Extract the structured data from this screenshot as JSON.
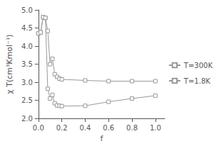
{
  "chart_data": {
    "type": "line",
    "xlabel": "f",
    "ylabel": "χ T(cm³Kmol⁻¹)",
    "x": [
      0.0,
      0.02,
      0.04,
      0.06,
      0.08,
      0.1,
      0.12,
      0.14,
      0.16,
      0.18,
      0.2,
      0.4,
      0.6,
      0.8,
      1.0
    ],
    "series": [
      {
        "name": "T=300K",
        "color": "#999999",
        "marker": "square",
        "values": [
          4.35,
          4.38,
          4.8,
          4.78,
          4.42,
          3.5,
          3.65,
          3.22,
          3.15,
          3.1,
          3.08,
          3.05,
          3.03,
          3.03,
          3.03
        ]
      },
      {
        "name": "T=1.8K",
        "color": "#999999",
        "marker": "square",
        "values": [
          4.35,
          4.38,
          4.8,
          4.78,
          2.82,
          2.55,
          2.65,
          2.42,
          2.36,
          2.35,
          2.34,
          2.35,
          2.46,
          2.55,
          2.63
        ]
      }
    ],
    "xlim": [
      0.0,
      1.08
    ],
    "ylim": [
      2.0,
      5.0
    ],
    "xticks": [
      {
        "value": 0,
        "label": "0.0"
      },
      0.2,
      0.4,
      0.6,
      0.8,
      {
        "value": 1,
        "label": "1.0"
      }
    ],
    "yticks": [
      {
        "value": 2,
        "label": "2.0"
      },
      2.5,
      {
        "value": 3,
        "label": "3.0"
      },
      3.5,
      {
        "value": 4,
        "label": "4.0"
      },
      4.5,
      {
        "value": 5,
        "label": "5.0"
      }
    ],
    "legend": "right",
    "grid": false
  }
}
